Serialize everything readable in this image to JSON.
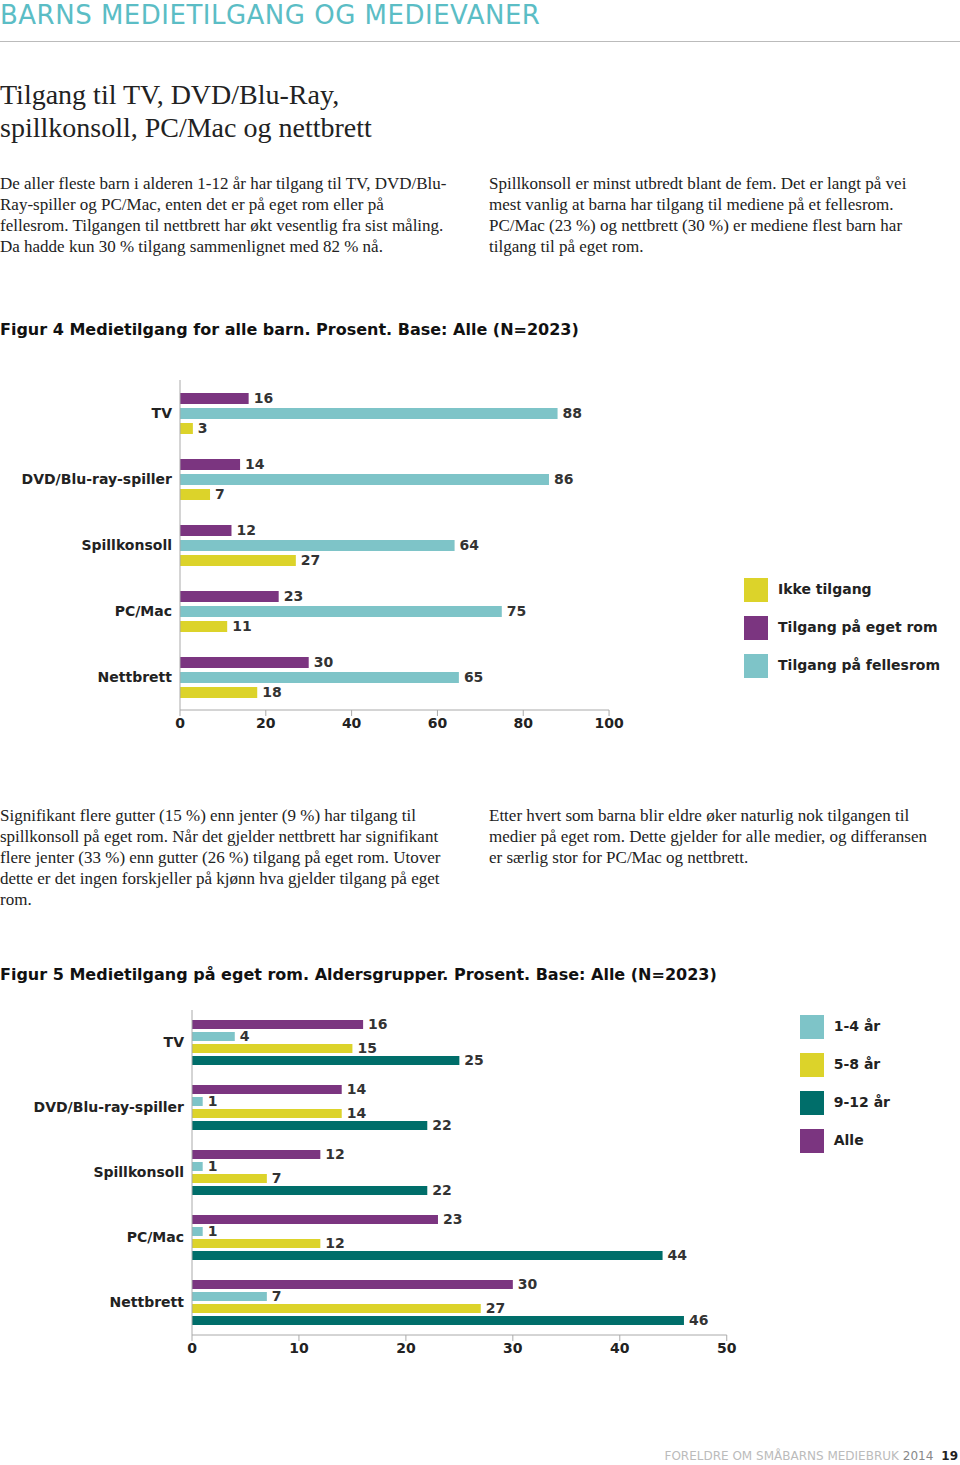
{
  "header": "BARNS MEDIETILGANG OG MEDIEVANER",
  "title": "Tilgang til TV, DVD/Blu-Ray, spillkonsoll, PC/Mac og nettbrett",
  "intro": "De aller fleste barn i alderen 1-12 år har tilgang til TV, DVD/Blu-Ray-spiller og PC/Mac, enten det er på eget rom eller på fellesrom. Tilgangen til nettbrett har økt vesentlig fra sist måling. Da hadde kun 30 % tilgang sammenlignet med 82 % nå. Spillkonsoll er minst utbredt blant de fem. Det er langt på vei mest vanlig at barna har tilgang til mediene på et fellesrom. PC/Mac (23 %) og nettbrett (30 %) er mediene flest barn har tilgang til på eget rom.",
  "body": [
    "Signifikant flere gutter (15 %) enn jenter (9 %) har tilgang til spillkonsoll på eget rom. Når det gjelder nettbrett har signifikant flere jenter (33 %) enn gutter (26 %) tilgang på eget rom. Utover dette er det ingen forskjeller på kjønn hva gjelder tilgang på eget rom.",
    "Etter hvert som barna blir eldre øker naturlig nok tilgangen til medier på eget rom. Dette gjelder for alle medier, og differansen er særlig stor for PC/Mac og nettbrett."
  ],
  "chart_data": [
    {
      "type": "bar",
      "orientation": "horizontal",
      "title": "Figur 4 Medietilgang for alle barn. Prosent. Base: Alle (N=2023)",
      "categories": [
        "TV",
        "DVD/Blu-ray-spiller",
        "Spillkonsoll",
        "PC/Mac",
        "Nettbrett"
      ],
      "series": [
        {
          "name": "Tilgang på eget rom",
          "color": "#7b3580",
          "values": [
            16,
            14,
            12,
            23,
            30
          ]
        },
        {
          "name": "Tilgang på fellesrom",
          "color": "#7ec4c8",
          "values": [
            88,
            86,
            64,
            75,
            65
          ]
        },
        {
          "name": "Ikke tilgang",
          "color": "#dcd32a",
          "values": [
            3,
            7,
            27,
            11,
            18
          ]
        }
      ],
      "xlim": [
        0,
        100
      ],
      "xticks": [
        0,
        20,
        40,
        60,
        80,
        100
      ],
      "data_labels": true,
      "grid": false,
      "legend": "right"
    },
    {
      "type": "bar",
      "orientation": "horizontal",
      "title": "Figur 5 Medietilgang på eget rom. Aldersgrupper. Prosent. Base: Alle (N=2023)",
      "categories": [
        "TV",
        "DVD/Blu-ray-spiller",
        "Spillkonsoll",
        "PC/Mac",
        "Nettbrett"
      ],
      "series": [
        {
          "name": "Alle",
          "color": "#7b3580",
          "values": [
            16,
            14,
            12,
            23,
            30
          ]
        },
        {
          "name": "1-4 år",
          "color": "#7ec4c8",
          "values": [
            4,
            1,
            1,
            1,
            7
          ]
        },
        {
          "name": "5-8 år",
          "color": "#dcd32a",
          "values": [
            15,
            14,
            7,
            12,
            27
          ]
        },
        {
          "name": "9-12 år",
          "color": "#006e6a",
          "values": [
            25,
            22,
            22,
            44,
            46
          ]
        }
      ],
      "xlim": [
        0,
        50
      ],
      "xticks": [
        0,
        10,
        20,
        30,
        40,
        50
      ],
      "data_labels": true,
      "grid": false,
      "legend": "right"
    }
  ],
  "footer": {
    "publication": "FORELDRE OM SMÅBARNS MEDIEBRUK",
    "year": 2014,
    "page": 19
  }
}
